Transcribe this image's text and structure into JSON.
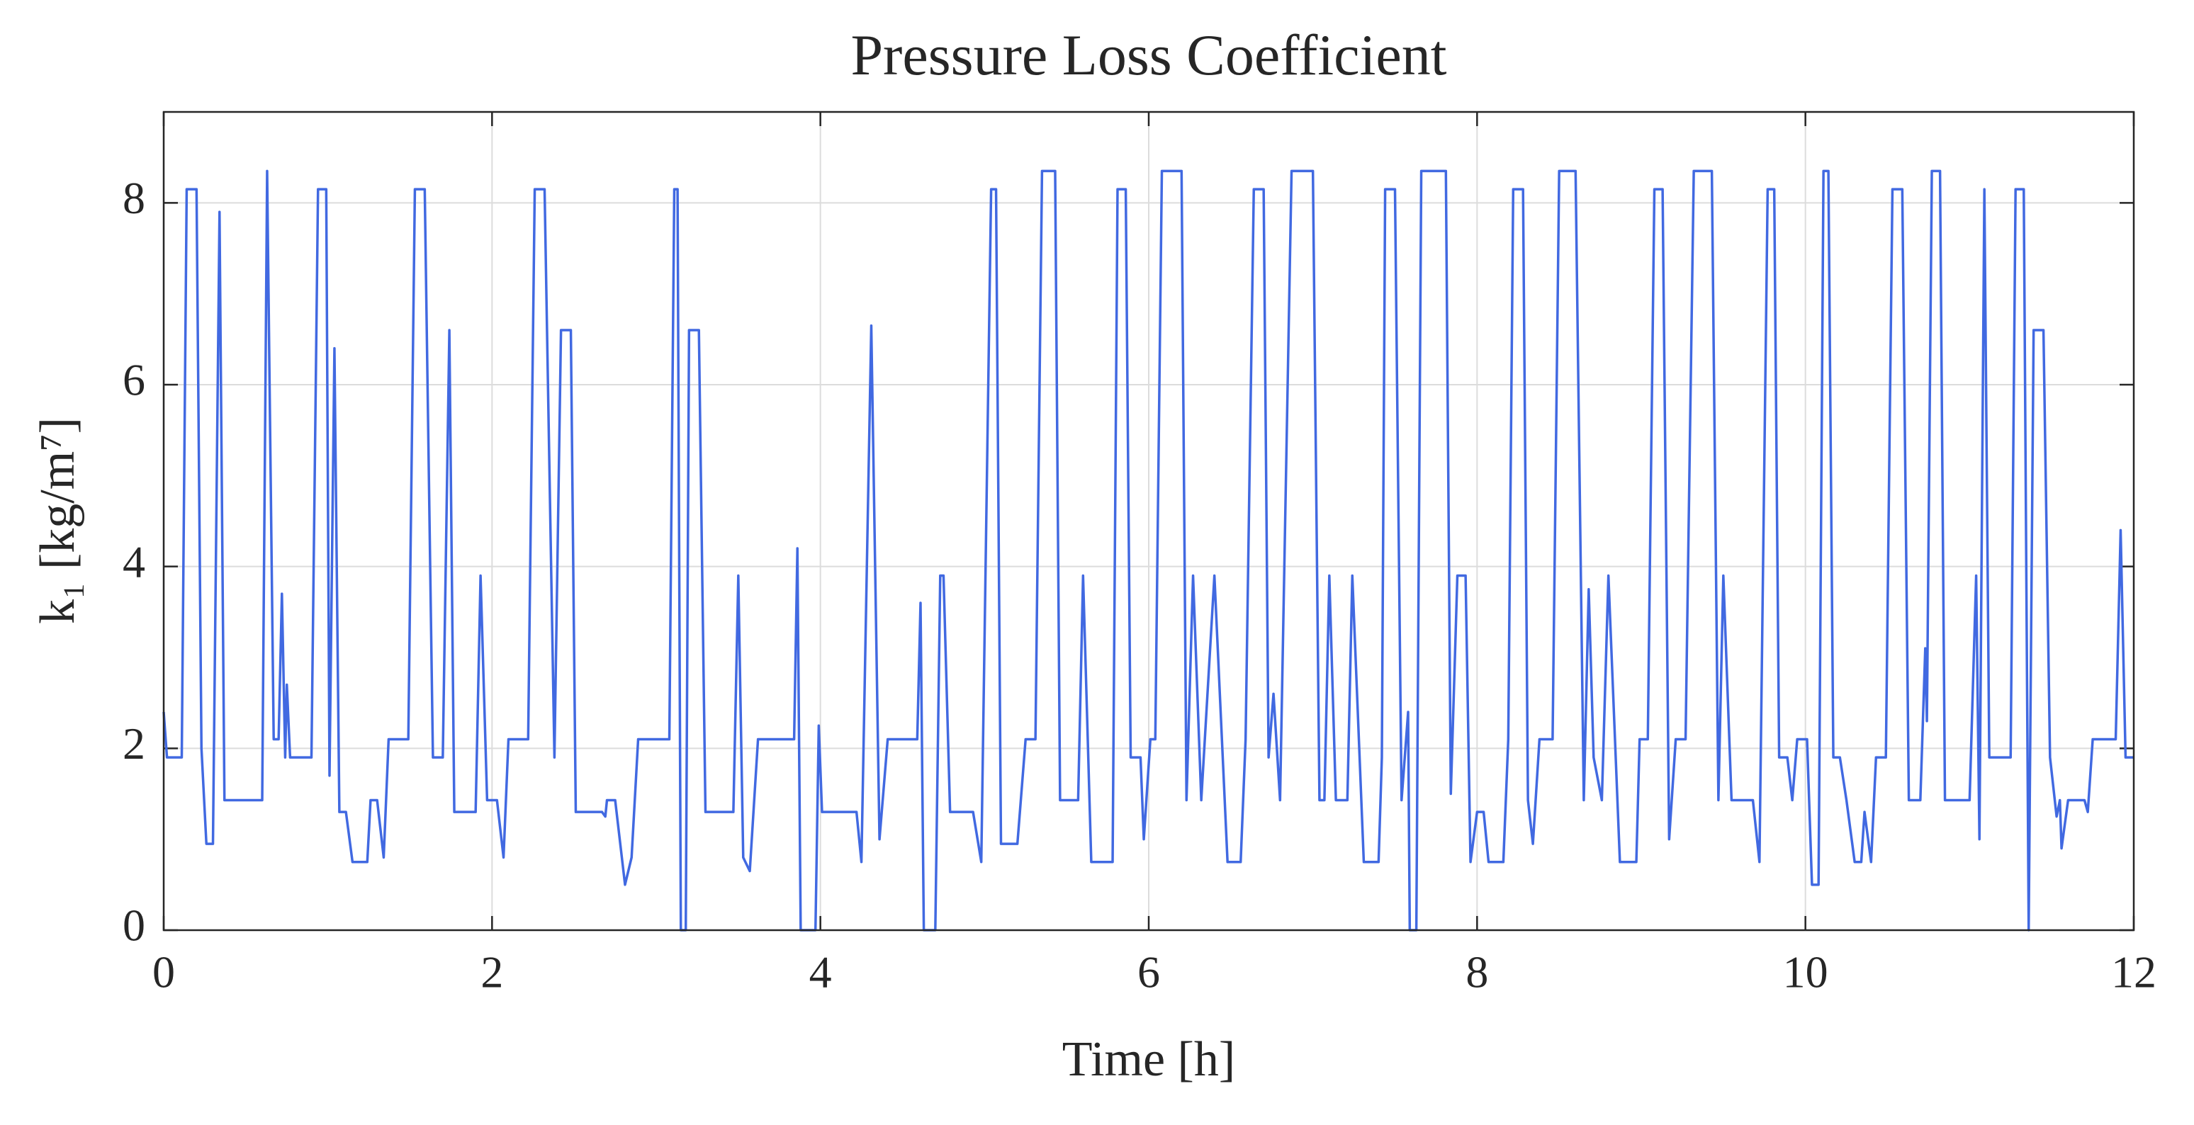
{
  "chart_data": {
    "type": "line",
    "title": "Pressure Loss Coefficient",
    "xlabel": "Time [h]",
    "ylabel": "k₁ [kg/m⁷]",
    "xlim": [
      0,
      12
    ],
    "ylim": [
      0,
      9
    ],
    "xticks": [
      0,
      2,
      4,
      6,
      8,
      10,
      12
    ],
    "yticks": [
      0,
      2,
      4,
      6,
      8
    ],
    "grid": true,
    "x": [
      0,
      0.02,
      0.11,
      0.14,
      0.2,
      0.23,
      0.26,
      0.3,
      0.34,
      0.37,
      0.6,
      0.63,
      0.67,
      0.7,
      0.72,
      0.74,
      0.75,
      0.77,
      0.9,
      0.94,
      0.99,
      1.01,
      1.04,
      1.07,
      1.11,
      1.15,
      1.24,
      1.26,
      1.3,
      1.34,
      1.37,
      1.49,
      1.53,
      1.59,
      1.64,
      1.7,
      1.74,
      1.77,
      1.9,
      1.93,
      1.97,
      2.03,
      2.07,
      2.1,
      2.22,
      2.26,
      2.32,
      2.38,
      2.42,
      2.48,
      2.51,
      2.67,
      2.69,
      2.7,
      2.75,
      2.81,
      2.85,
      2.89,
      3.08,
      3.11,
      3.13,
      3.15,
      3.18,
      3.2,
      3.26,
      3.3,
      3.47,
      3.5,
      3.53,
      3.57,
      3.62,
      3.84,
      3.86,
      3.88,
      3.97,
      3.99,
      4.01,
      4.22,
      4.25,
      4.31,
      4.36,
      4.41,
      4.59,
      4.61,
      4.63,
      4.7,
      4.73,
      4.75,
      4.79,
      4.93,
      4.98,
      5.04,
      5.07,
      5.1,
      5.2,
      5.25,
      5.31,
      5.35,
      5.43,
      5.46,
      5.57,
      5.6,
      5.65,
      5.78,
      5.81,
      5.86,
      5.89,
      5.95,
      5.97,
      6.01,
      6.04,
      6.08,
      6.2,
      6.23,
      6.27,
      6.32,
      6.4,
      6.48,
      6.56,
      6.59,
      6.64,
      6.7,
      6.73,
      6.76,
      6.8,
      6.87,
      7.0,
      7.04,
      7.07,
      7.1,
      7.14,
      7.21,
      7.24,
      7.31,
      7.4,
      7.42,
      7.44,
      7.5,
      7.54,
      7.58,
      7.59,
      7.63,
      7.66,
      7.81,
      7.84,
      7.88,
      7.93,
      7.96,
      8.0,
      8.04,
      8.07,
      8.16,
      8.19,
      8.22,
      8.28,
      8.31,
      8.34,
      8.38,
      8.46,
      8.5,
      8.6,
      8.65,
      8.68,
      8.71,
      8.76,
      8.8,
      8.87,
      8.97,
      8.99,
      9.04,
      9.08,
      9.13,
      9.17,
      9.21,
      9.27,
      9.32,
      9.43,
      9.47,
      9.5,
      9.55,
      9.68,
      9.72,
      9.77,
      9.81,
      9.84,
      9.89,
      9.92,
      9.95,
      10.01,
      10.04,
      10.08,
      10.11,
      10.14,
      10.17,
      10.21,
      10.25,
      10.3,
      10.34,
      10.36,
      10.4,
      10.43,
      10.49,
      10.53,
      10.59,
      10.63,
      10.7,
      10.73,
      10.74,
      10.77,
      10.82,
      10.85,
      11.0,
      11.04,
      11.06,
      11.09,
      11.12,
      11.25,
      11.28,
      11.33,
      11.36,
      11.39,
      11.45,
      11.49,
      11.53,
      11.55,
      11.56,
      11.6,
      11.7,
      11.72,
      11.75,
      11.89,
      11.92,
      11.95,
      12
    ],
    "series": [
      {
        "name": "k1",
        "color": "#4169e1",
        "values": [
          2.4,
          1.9,
          1.9,
          8.15,
          8.15,
          2.0,
          0.95,
          0.95,
          7.9,
          1.43,
          1.43,
          8.35,
          2.1,
          2.1,
          3.7,
          1.9,
          2.7,
          1.9,
          1.9,
          8.15,
          8.15,
          1.7,
          6.4,
          1.3,
          1.3,
          0.75,
          0.75,
          1.43,
          1.43,
          0.8,
          2.1,
          2.1,
          8.15,
          8.15,
          1.9,
          1.9,
          6.6,
          1.3,
          1.3,
          3.9,
          1.43,
          1.43,
          0.8,
          2.1,
          2.1,
          8.15,
          8.15,
          1.9,
          6.6,
          6.6,
          1.3,
          1.3,
          1.25,
          1.43,
          1.43,
          0.5,
          0.8,
          2.1,
          2.1,
          8.15,
          8.15,
          0,
          0,
          6.6,
          6.6,
          1.3,
          1.3,
          3.9,
          0.8,
          0.65,
          2.1,
          2.1,
          4.2,
          0,
          0,
          2.25,
          1.3,
          1.3,
          0.75,
          6.65,
          1.0,
          2.1,
          2.1,
          3.6,
          0,
          0,
          3.9,
          3.9,
          1.3,
          1.3,
          0.75,
          8.15,
          8.15,
          0.95,
          0.95,
          2.1,
          2.1,
          8.35,
          8.35,
          1.43,
          1.43,
          3.9,
          0.75,
          0.75,
          8.15,
          8.15,
          1.9,
          1.9,
          1.0,
          2.1,
          2.1,
          8.35,
          8.35,
          1.43,
          3.9,
          1.43,
          3.9,
          0.75,
          0.75,
          2.1,
          8.15,
          8.15,
          1.9,
          2.6,
          1.43,
          8.35,
          8.35,
          1.43,
          1.43,
          3.9,
          1.43,
          1.43,
          3.9,
          0.75,
          0.75,
          1.9,
          8.15,
          8.15,
          1.43,
          2.4,
          0,
          0,
          8.35,
          8.35,
          1.5,
          3.9,
          3.9,
          0.75,
          1.3,
          1.3,
          0.75,
          0.75,
          2.1,
          8.15,
          8.15,
          1.43,
          0.95,
          2.1,
          2.1,
          8.35,
          8.35,
          1.43,
          3.75,
          1.9,
          1.43,
          3.9,
          0.75,
          0.75,
          2.1,
          2.1,
          8.15,
          8.15,
          1.0,
          2.1,
          2.1,
          8.35,
          8.35,
          1.43,
          3.9,
          1.43,
          1.43,
          0.75,
          8.15,
          8.15,
          1.9,
          1.9,
          1.43,
          2.1,
          2.1,
          0.5,
          0.5,
          8.35,
          8.35,
          1.9,
          1.9,
          1.43,
          0.75,
          0.75,
          1.3,
          0.75,
          1.9,
          1.9,
          8.15,
          8.15,
          1.43,
          1.43,
          3.1,
          2.3,
          8.35,
          8.35,
          1.43,
          1.43,
          3.9,
          1.0,
          8.15,
          1.9,
          1.9,
          8.15,
          8.15,
          0,
          6.6,
          6.6,
          1.9,
          1.25,
          1.43,
          0.9,
          1.43,
          1.43,
          1.3,
          2.1,
          2.1,
          4.4,
          1.9,
          1.9
        ]
      }
    ]
  }
}
